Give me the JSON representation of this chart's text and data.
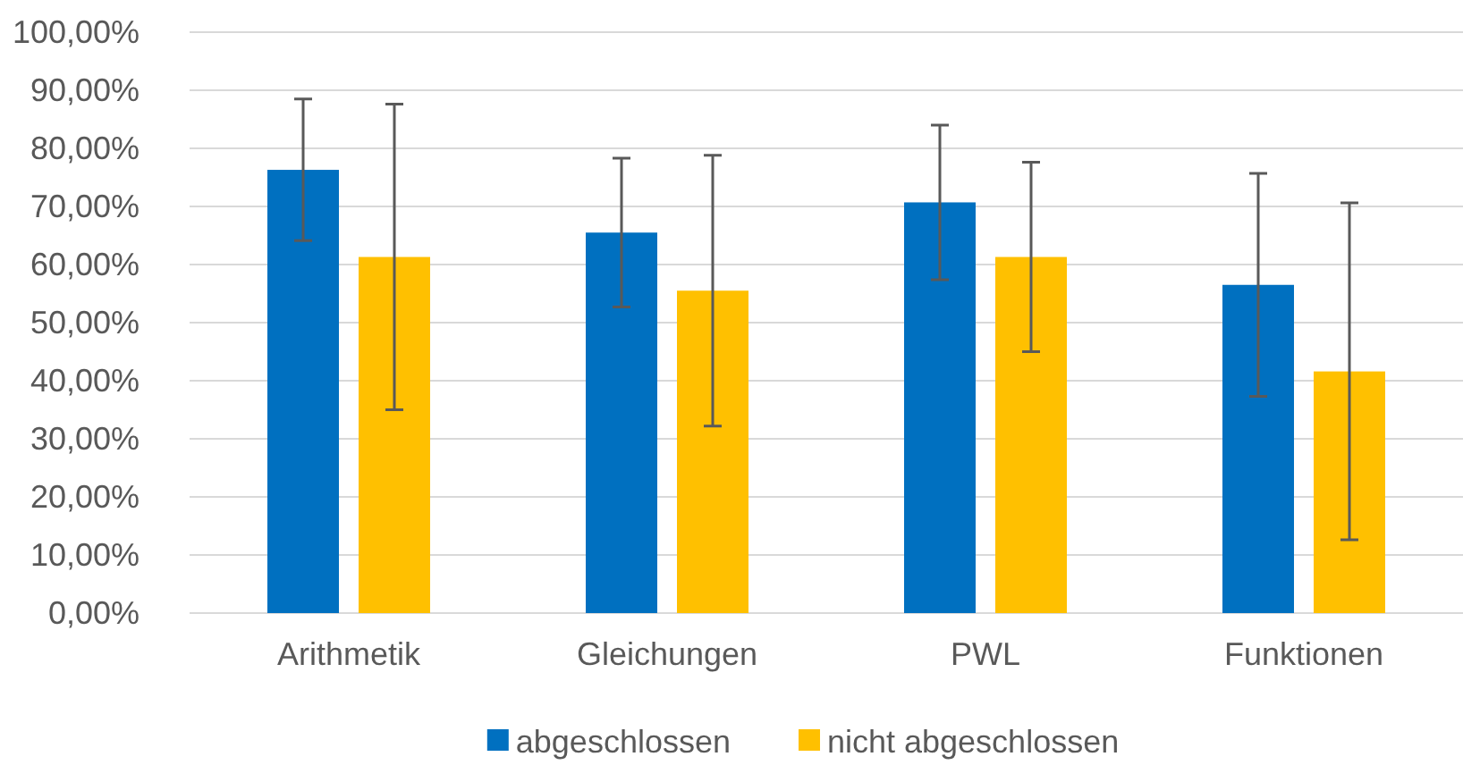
{
  "chart_data": {
    "type": "bar",
    "categories": [
      "Arithmetik",
      "Gleichungen",
      "PWL",
      "Funktionen"
    ],
    "series": [
      {
        "name": "abgeschlossen",
        "color": "#0070c0",
        "values": [
          76.3,
          65.5,
          70.7,
          56.5
        ],
        "errors": [
          12.2,
          12.8,
          13.3,
          19.2
        ]
      },
      {
        "name": "nicht abgeschlossen",
        "color": "#ffc000",
        "values": [
          61.3,
          55.5,
          61.3,
          41.6
        ],
        "errors": [
          26.3,
          23.3,
          16.3,
          29.0
        ]
      }
    ],
    "ylim": [
      0,
      100
    ],
    "yticks": [
      {
        "value": 0,
        "label": "0,00%"
      },
      {
        "value": 10,
        "label": "10,00%"
      },
      {
        "value": 20,
        "label": "20,00%"
      },
      {
        "value": 30,
        "label": "30,00%"
      },
      {
        "value": 40,
        "label": "40,00%"
      },
      {
        "value": 50,
        "label": "50,00%"
      },
      {
        "value": 60,
        "label": "60,00%"
      },
      {
        "value": 70,
        "label": "70,00%"
      },
      {
        "value": 80,
        "label": "80,00%"
      },
      {
        "value": 90,
        "label": "90,00%"
      },
      {
        "value": 100,
        "label": "100,00%"
      }
    ],
    "grid": "y",
    "legend": "bottom"
  }
}
